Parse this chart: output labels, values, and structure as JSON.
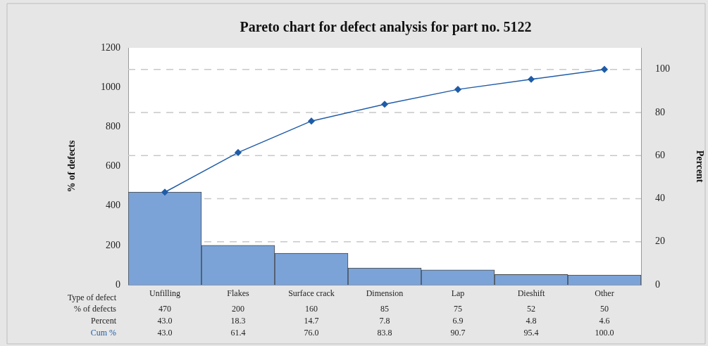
{
  "chart_data": {
    "type": "bar",
    "title": "Pareto chart for defect analysis for part no. 5122",
    "xlabel": "Type of defect",
    "ylabel": "% of defects",
    "y2label": "Percent",
    "categories": [
      "Unfilling",
      "Flakes",
      "Surface crack",
      "Dimension",
      "Lap",
      "Dieshift",
      "Other"
    ],
    "series": [
      {
        "name": "% of defects",
        "color": "#7ba3d8",
        "values": [
          470,
          200,
          160,
          85,
          75,
          52,
          50
        ],
        "data_labels": true
      },
      {
        "name": "Cum %",
        "type": "line",
        "axis": "y2",
        "color": "#1f5ca8",
        "marker": "diamond",
        "values": [
          43.0,
          61.4,
          76.0,
          83.8,
          90.7,
          95.4,
          100.0
        ],
        "value_labels": [
          "43.0",
          "61.4",
          "76.0",
          "83.8",
          "90.7",
          "95.4",
          "100.0"
        ]
      }
    ],
    "ylim": [
      0,
      1200
    ],
    "yticks": [
      0,
      200,
      400,
      600,
      800,
      1000,
      1200
    ],
    "y2lim": [
      0,
      110
    ],
    "y2ticks": [
      0,
      20,
      40,
      60,
      80,
      100
    ],
    "grid": "y2",
    "legend": false,
    "annotations": [
      "Percent",
      "43.0",
      "18.3",
      "14.7",
      "7.8",
      "6.9",
      "4.8",
      "4.6"
    ]
  }
}
